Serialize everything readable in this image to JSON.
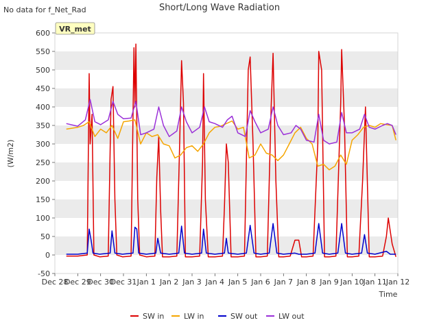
{
  "corner_note": "No data for f_Net_Rad",
  "badge_label": "VR_met",
  "colors": {
    "SW in": "#dd0000",
    "LW in": "#f5a500",
    "SW out": "#0000cc",
    "LW out": "#9a2fd8",
    "band": "#ebebeb",
    "badge_fill": "#ffffc0",
    "badge_text": "#990000"
  },
  "chart_data": {
    "type": "line",
    "title": "Short/Long Wave Radiation",
    "xlabel": "Time",
    "ylabel": "(W/m2)",
    "ylim": [
      -50,
      600
    ],
    "yticks": [
      -50,
      0,
      50,
      100,
      150,
      200,
      250,
      300,
      350,
      400,
      450,
      500,
      550,
      600
    ],
    "xlim": [
      "2023-12-28",
      "2024-01-12"
    ],
    "xticks": [
      "Dec 28",
      "Dec 29",
      "Dec 30",
      "Dec 31",
      "Jan 1",
      "Jan 2",
      "Jan 3",
      "Jan 4",
      "Jan 5",
      "Jan 6",
      "Jan 7",
      "Jan 8",
      "Jan 9",
      "Jan 10",
      "Jan 11",
      "Jan 12"
    ],
    "grid": "horizontal bands",
    "legend_position": "bottom",
    "series": [
      {
        "name": "SW in",
        "x": [
          "2023-12-28T12:00",
          "2023-12-29T00:00",
          "2023-12-29T10:00",
          "2023-12-29T12:00",
          "2023-12-29T13:00",
          "2023-12-29T15:00",
          "2023-12-29T17:00",
          "2023-12-29T23:00",
          "2023-12-30T08:00",
          "2023-12-30T11:00",
          "2023-12-30T13:00",
          "2023-12-30T15:00",
          "2023-12-30T17:00",
          "2023-12-30T23:00",
          "2023-12-31T08:00",
          "2023-12-31T11:00",
          "2023-12-31T12:00",
          "2023-12-31T13:00",
          "2023-12-31T15:00",
          "2023-12-31T17:00",
          "2024-01-01T00:00",
          "2024-01-01T09:00",
          "2024-01-01T11:00",
          "2024-01-01T13:00",
          "2024-01-01T15:00",
          "2024-01-01T17:00",
          "2024-01-02T00:00",
          "2024-01-02T08:00",
          "2024-01-02T11:00",
          "2024-01-02T13:00",
          "2024-01-02T15:00",
          "2024-01-02T17:00",
          "2024-01-03T00:00",
          "2024-01-03T08:00",
          "2024-01-03T11:00",
          "2024-01-03T12:00",
          "2024-01-03T14:00",
          "2024-01-03T17:00",
          "2024-01-04T00:00",
          "2024-01-04T08:00",
          "2024-01-04T10:00",
          "2024-01-04T12:00",
          "2024-01-04T14:00",
          "2024-01-04T17:00",
          "2024-01-05T00:00",
          "2024-01-05T07:00",
          "2024-01-05T11:00",
          "2024-01-05T13:00",
          "2024-01-05T16:00",
          "2024-01-05T19:00",
          "2024-01-06T00:00",
          "2024-01-06T07:00",
          "2024-01-06T11:00",
          "2024-01-06T13:00",
          "2024-01-06T16:00",
          "2024-01-06T19:00",
          "2024-01-07T00:00",
          "2024-01-07T07:00",
          "2024-01-07T12:00",
          "2024-01-07T16:00",
          "2024-01-07T19:00",
          "2024-01-08T00:00",
          "2024-01-08T07:00",
          "2024-01-08T12:00",
          "2024-01-08T13:00",
          "2024-01-08T16:00",
          "2024-01-08T19:00",
          "2024-01-09T00:00",
          "2024-01-09T07:00",
          "2024-01-09T12:00",
          "2024-01-09T13:00",
          "2024-01-09T16:00",
          "2024-01-09T19:00",
          "2024-01-10T00:00",
          "2024-01-10T07:00",
          "2024-01-10T11:00",
          "2024-01-10T14:00",
          "2024-01-10T18:00",
          "2024-01-11T00:00",
          "2024-01-11T08:00",
          "2024-01-11T12:00",
          "2024-01-11T14:00",
          "2024-01-11T18:00",
          "2024-01-11T22:00"
        ],
        "values": [
          -3,
          -3,
          0,
          490,
          300,
          380,
          0,
          -5,
          -3,
          420,
          455,
          150,
          0,
          -5,
          -3,
          560,
          400,
          570,
          150,
          0,
          -5,
          -3,
          210,
          320,
          120,
          -5,
          -5,
          -3,
          300,
          525,
          410,
          -5,
          -5,
          -3,
          250,
          490,
          150,
          -5,
          -5,
          -3,
          130,
          300,
          250,
          -5,
          -5,
          -3,
          500,
          535,
          300,
          -5,
          -5,
          -3,
          400,
          545,
          200,
          -5,
          -5,
          -3,
          40,
          40,
          -5,
          -5,
          -3,
          300,
          550,
          500,
          -5,
          -5,
          -3,
          410,
          555,
          350,
          -5,
          -5,
          -3,
          200,
          400,
          -5,
          -5,
          -3,
          50,
          100,
          30,
          -5
        ]
      },
      {
        "name": "LW in",
        "x": [
          "2023-12-28T12:00",
          "2023-12-29T00:00",
          "2023-12-29T06:00",
          "2023-12-29T12:00",
          "2023-12-29T18:00",
          "2023-12-30T00:00",
          "2023-12-30T06:00",
          "2023-12-30T12:00",
          "2023-12-30T18:00",
          "2023-12-31T00:00",
          "2023-12-31T06:00",
          "2023-12-31T12:00",
          "2023-12-31T18:00",
          "2024-01-01T00:00",
          "2024-01-01T06:00",
          "2024-01-01T12:00",
          "2024-01-01T18:00",
          "2024-01-02T00:00",
          "2024-01-02T06:00",
          "2024-01-02T12:00",
          "2024-01-02T18:00",
          "2024-01-03T00:00",
          "2024-01-03T06:00",
          "2024-01-03T12:00",
          "2024-01-03T18:00",
          "2024-01-04T00:00",
          "2024-01-04T06:00",
          "2024-01-04T12:00",
          "2024-01-04T18:00",
          "2024-01-05T00:00",
          "2024-01-05T06:00",
          "2024-01-05T12:00",
          "2024-01-05T18:00",
          "2024-01-06T00:00",
          "2024-01-06T06:00",
          "2024-01-06T12:00",
          "2024-01-06T18:00",
          "2024-01-07T00:00",
          "2024-01-07T06:00",
          "2024-01-07T12:00",
          "2024-01-07T18:00",
          "2024-01-08T00:00",
          "2024-01-08T06:00",
          "2024-01-08T12:00",
          "2024-01-08T18:00",
          "2024-01-09T00:00",
          "2024-01-09T06:00",
          "2024-01-09T12:00",
          "2024-01-09T18:00",
          "2024-01-10T00:00",
          "2024-01-10T06:00",
          "2024-01-10T12:00",
          "2024-01-10T18:00",
          "2024-01-11T00:00",
          "2024-01-11T06:00",
          "2024-01-11T12:00",
          "2024-01-11T18:00",
          "2024-01-11T22:00"
        ],
        "values": [
          340,
          345,
          350,
          360,
          320,
          340,
          330,
          350,
          315,
          360,
          362,
          365,
          300,
          330,
          320,
          325,
          300,
          295,
          262,
          270,
          290,
          295,
          280,
          300,
          330,
          345,
          348,
          355,
          362,
          340,
          345,
          262,
          270,
          300,
          275,
          270,
          255,
          270,
          300,
          330,
          345,
          315,
          300,
          240,
          245,
          230,
          240,
          270,
          245,
          310,
          325,
          345,
          350,
          345,
          355,
          352,
          350,
          310
        ]
      },
      {
        "name": "SW out",
        "x": [
          "2023-12-28T12:00",
          "2023-12-29T00:00",
          "2023-12-29T10:00",
          "2023-12-29T12:00",
          "2023-12-29T14:00",
          "2023-12-29T16:00",
          "2023-12-29T23:00",
          "2023-12-30T10:00",
          "2023-12-30T12:00",
          "2023-12-30T15:00",
          "2023-12-30T23:00",
          "2023-12-31T10:00",
          "2023-12-31T12:00",
          "2023-12-31T14:00",
          "2023-12-31T16:00",
          "2024-01-01T00:00",
          "2024-01-01T10:00",
          "2024-01-01T12:00",
          "2024-01-01T15:00",
          "2024-01-02T00:00",
          "2024-01-02T10:00",
          "2024-01-02T13:00",
          "2024-01-02T16:00",
          "2024-01-03T00:00",
          "2024-01-03T10:00",
          "2024-01-03T12:00",
          "2024-01-03T15:00",
          "2024-01-04T00:00",
          "2024-01-04T10:00",
          "2024-01-04T12:00",
          "2024-01-04T14:00",
          "2024-01-05T00:00",
          "2024-01-05T09:00",
          "2024-01-05T13:00",
          "2024-01-05T17:00",
          "2024-01-06T00:00",
          "2024-01-06T09:00",
          "2024-01-06T13:00",
          "2024-01-06T17:00",
          "2024-01-07T00:00",
          "2024-01-07T12:00",
          "2024-01-07T16:00",
          "2024-01-08T00:00",
          "2024-01-08T09:00",
          "2024-01-08T13:00",
          "2024-01-08T17:00",
          "2024-01-09T00:00",
          "2024-01-09T09:00",
          "2024-01-09T13:00",
          "2024-01-09T17:00",
          "2024-01-10T00:00",
          "2024-01-10T10:00",
          "2024-01-10T13:00",
          "2024-01-10T16:00",
          "2024-01-11T00:00",
          "2024-01-11T12:00",
          "2024-01-11T16:00",
          "2024-01-11T22:00"
        ],
        "values": [
          2,
          2,
          5,
          70,
          40,
          5,
          2,
          5,
          65,
          5,
          2,
          5,
          75,
          70,
          5,
          2,
          5,
          45,
          5,
          2,
          5,
          78,
          5,
          2,
          5,
          70,
          5,
          2,
          5,
          45,
          5,
          2,
          5,
          80,
          5,
          2,
          5,
          85,
          5,
          2,
          5,
          2,
          2,
          5,
          85,
          5,
          2,
          5,
          85,
          5,
          2,
          5,
          55,
          5,
          2,
          10,
          2,
          2
        ]
      },
      {
        "name": "LW out",
        "x": [
          "2023-12-28T12:00",
          "2023-12-29T00:00",
          "2023-12-29T08:00",
          "2023-12-29T13:00",
          "2023-12-29T18:00",
          "2023-12-30T00:00",
          "2023-12-30T08:00",
          "2023-12-30T13:00",
          "2023-12-30T18:00",
          "2023-12-31T00:00",
          "2023-12-31T08:00",
          "2023-12-31T13:00",
          "2023-12-31T18:00",
          "2024-01-01T00:00",
          "2024-01-01T08:00",
          "2024-01-01T13:00",
          "2024-01-01T18:00",
          "2024-01-02T00:00",
          "2024-01-02T08:00",
          "2024-01-02T13:00",
          "2024-01-02T18:00",
          "2024-01-03T00:00",
          "2024-01-03T08:00",
          "2024-01-03T13:00",
          "2024-01-03T18:00",
          "2024-01-04T00:00",
          "2024-01-04T08:00",
          "2024-01-04T13:00",
          "2024-01-04T18:00",
          "2024-01-05T00:00",
          "2024-01-05T08:00",
          "2024-01-05T13:00",
          "2024-01-05T18:00",
          "2024-01-06T00:00",
          "2024-01-06T08:00",
          "2024-01-06T13:00",
          "2024-01-06T18:00",
          "2024-01-07T00:00",
          "2024-01-07T08:00",
          "2024-01-07T13:00",
          "2024-01-07T18:00",
          "2024-01-08T00:00",
          "2024-01-08T08:00",
          "2024-01-08T13:00",
          "2024-01-08T18:00",
          "2024-01-09T00:00",
          "2024-01-09T08:00",
          "2024-01-09T13:00",
          "2024-01-09T18:00",
          "2024-01-10T00:00",
          "2024-01-10T08:00",
          "2024-01-10T13:00",
          "2024-01-10T18:00",
          "2024-01-11T00:00",
          "2024-01-11T08:00",
          "2024-01-11T13:00",
          "2024-01-11T18:00",
          "2024-01-11T22:00"
        ],
        "values": [
          355,
          348,
          365,
          420,
          360,
          352,
          365,
          415,
          380,
          368,
          370,
          415,
          325,
          330,
          340,
          400,
          350,
          320,
          335,
          400,
          360,
          330,
          345,
          400,
          360,
          355,
          345,
          365,
          375,
          330,
          320,
          390,
          360,
          330,
          340,
          400,
          350,
          325,
          330,
          350,
          340,
          310,
          305,
          380,
          310,
          300,
          305,
          385,
          330,
          330,
          340,
          380,
          345,
          340,
          350,
          355,
          350,
          325
        ]
      }
    ]
  }
}
